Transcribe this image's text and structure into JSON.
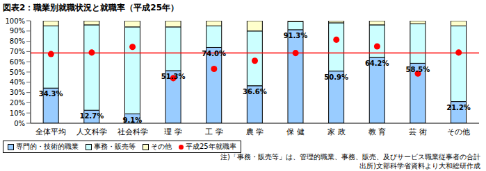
{
  "chart_data": {
    "type": "bar",
    "title": "図表2：職業別就職状況と就職率（平成25年）",
    "stacked": true,
    "data_labels": true,
    "grid": false,
    "categories": [
      "全体平均",
      "人文科学",
      "社会科学",
      "理 学",
      "工 学",
      "農 学",
      "保 健",
      "家 政",
      "教 育",
      "芸 術",
      "その他"
    ],
    "series": [
      {
        "name": "専門的・技術的職業",
        "type": "bar",
        "color": "#99ccff",
        "values": [
          34.3,
          12.7,
          9.1,
          51.3,
          74.0,
          36.6,
          91.3,
          50.9,
          64.2,
          58.5,
          21.2
        ],
        "value_labels": [
          "34.3%",
          "12.7%",
          "9.1%",
          "51.3%",
          "74.0%",
          "36.6%",
          "91.3%",
          "50.9%",
          "64.2%",
          "58.5%",
          "21.2%"
        ]
      },
      {
        "name": "事務・販売等",
        "type": "bar",
        "color": "#ccffff",
        "values": [
          60.7,
          83.3,
          84.9,
          42.7,
          21.0,
          53.4,
          7.7,
          47.1,
          31.8,
          38.5,
          73.8
        ]
      },
      {
        "name": "その他",
        "type": "bar",
        "color": "#ffffcc",
        "values": [
          5.0,
          4.0,
          6.0,
          6.0,
          5.0,
          10.0,
          1.0,
          2.0,
          4.0,
          3.0,
          5.0
        ]
      },
      {
        "name": "平成25年就職率",
        "type": "scatter",
        "color": "#ff0000",
        "values": [
          67.5,
          69.0,
          74.5,
          44.0,
          53.0,
          61.0,
          68.5,
          81.5,
          75.0,
          48.5,
          69.0
        ]
      }
    ],
    "reference_line": 68.5,
    "ylim": [
      0,
      100
    ],
    "yticks": [
      {
        "value": 0,
        "label": "0%"
      },
      {
        "value": 10,
        "label": "10%"
      },
      {
        "value": 20,
        "label": "20%"
      },
      {
        "value": 30,
        "label": "30%"
      },
      {
        "value": 40,
        "label": "40%"
      },
      {
        "value": 50,
        "label": "50%"
      },
      {
        "value": 60,
        "label": "60%"
      },
      {
        "value": 70,
        "label": "70%"
      },
      {
        "value": 80,
        "label": "80%"
      },
      {
        "value": 90,
        "label": "90%"
      },
      {
        "value": 100,
        "label": "100%"
      }
    ],
    "notes": [
      "注)「事務・販売等」は、管理的職業、事務、販売、及びサービス職業従事者の合計",
      "出所)文部科学省資料より大和総研作成"
    ]
  }
}
